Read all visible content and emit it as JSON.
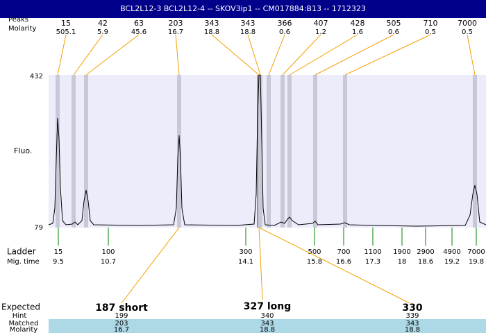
{
  "header": {
    "title": "BCL2L12-3  BCL2L12-4 -- SKOV3ip1 -- CM017884:B13 -- 1712323"
  },
  "row_labels": {
    "peaks": "Peaks",
    "molarity": "Molarity",
    "fluo": "Fluo.",
    "ladder": "Ladder",
    "mig_time": "Mig. time",
    "expected": "Expected",
    "hint": "Hint",
    "matched": "Matched",
    "molarity_bottom": "Molarity"
  },
  "y_axis": {
    "top": "432",
    "bottom": "79"
  },
  "peaks": [
    {
      "size": "15",
      "molarity": "505.1"
    },
    {
      "size": "42",
      "molarity": "5.9"
    },
    {
      "size": "63",
      "molarity": "45.6"
    },
    {
      "size": "203",
      "molarity": "16.7"
    },
    {
      "size": "343",
      "molarity": "18.8"
    },
    {
      "size": "343",
      "molarity": "18.8"
    },
    {
      "size": "366",
      "molarity": "0.6"
    },
    {
      "size": "407",
      "molarity": "1.2"
    },
    {
      "size": "428",
      "molarity": "1.6"
    },
    {
      "size": "505",
      "molarity": "0.6"
    },
    {
      "size": "710",
      "molarity": "0.5"
    },
    {
      "size": "7000",
      "molarity": "0.5"
    }
  ],
  "ladder": [
    {
      "size": "15",
      "time": "9.5"
    },
    {
      "size": "100",
      "time": "10.7"
    },
    {
      "size": "300",
      "time": "14.1"
    },
    {
      "size": "500",
      "time": "15.8"
    },
    {
      "size": "700",
      "time": "16.6"
    },
    {
      "size": "1100",
      "time": "17.3"
    },
    {
      "size": "1900",
      "time": "18"
    },
    {
      "size": "2900",
      "time": "18.6"
    },
    {
      "size": "4900",
      "time": "19.2"
    },
    {
      "size": "7000",
      "time": "19.8"
    }
  ],
  "expected": [
    {
      "name": "187 short",
      "hint": "199",
      "matched": "203",
      "molarity": "16.7"
    },
    {
      "name": "327 long",
      "hint": "340",
      "matched": "343",
      "molarity": "18.8"
    },
    {
      "name": "330",
      "hint": "339",
      "matched": "343",
      "molarity": "18.8"
    }
  ]
}
